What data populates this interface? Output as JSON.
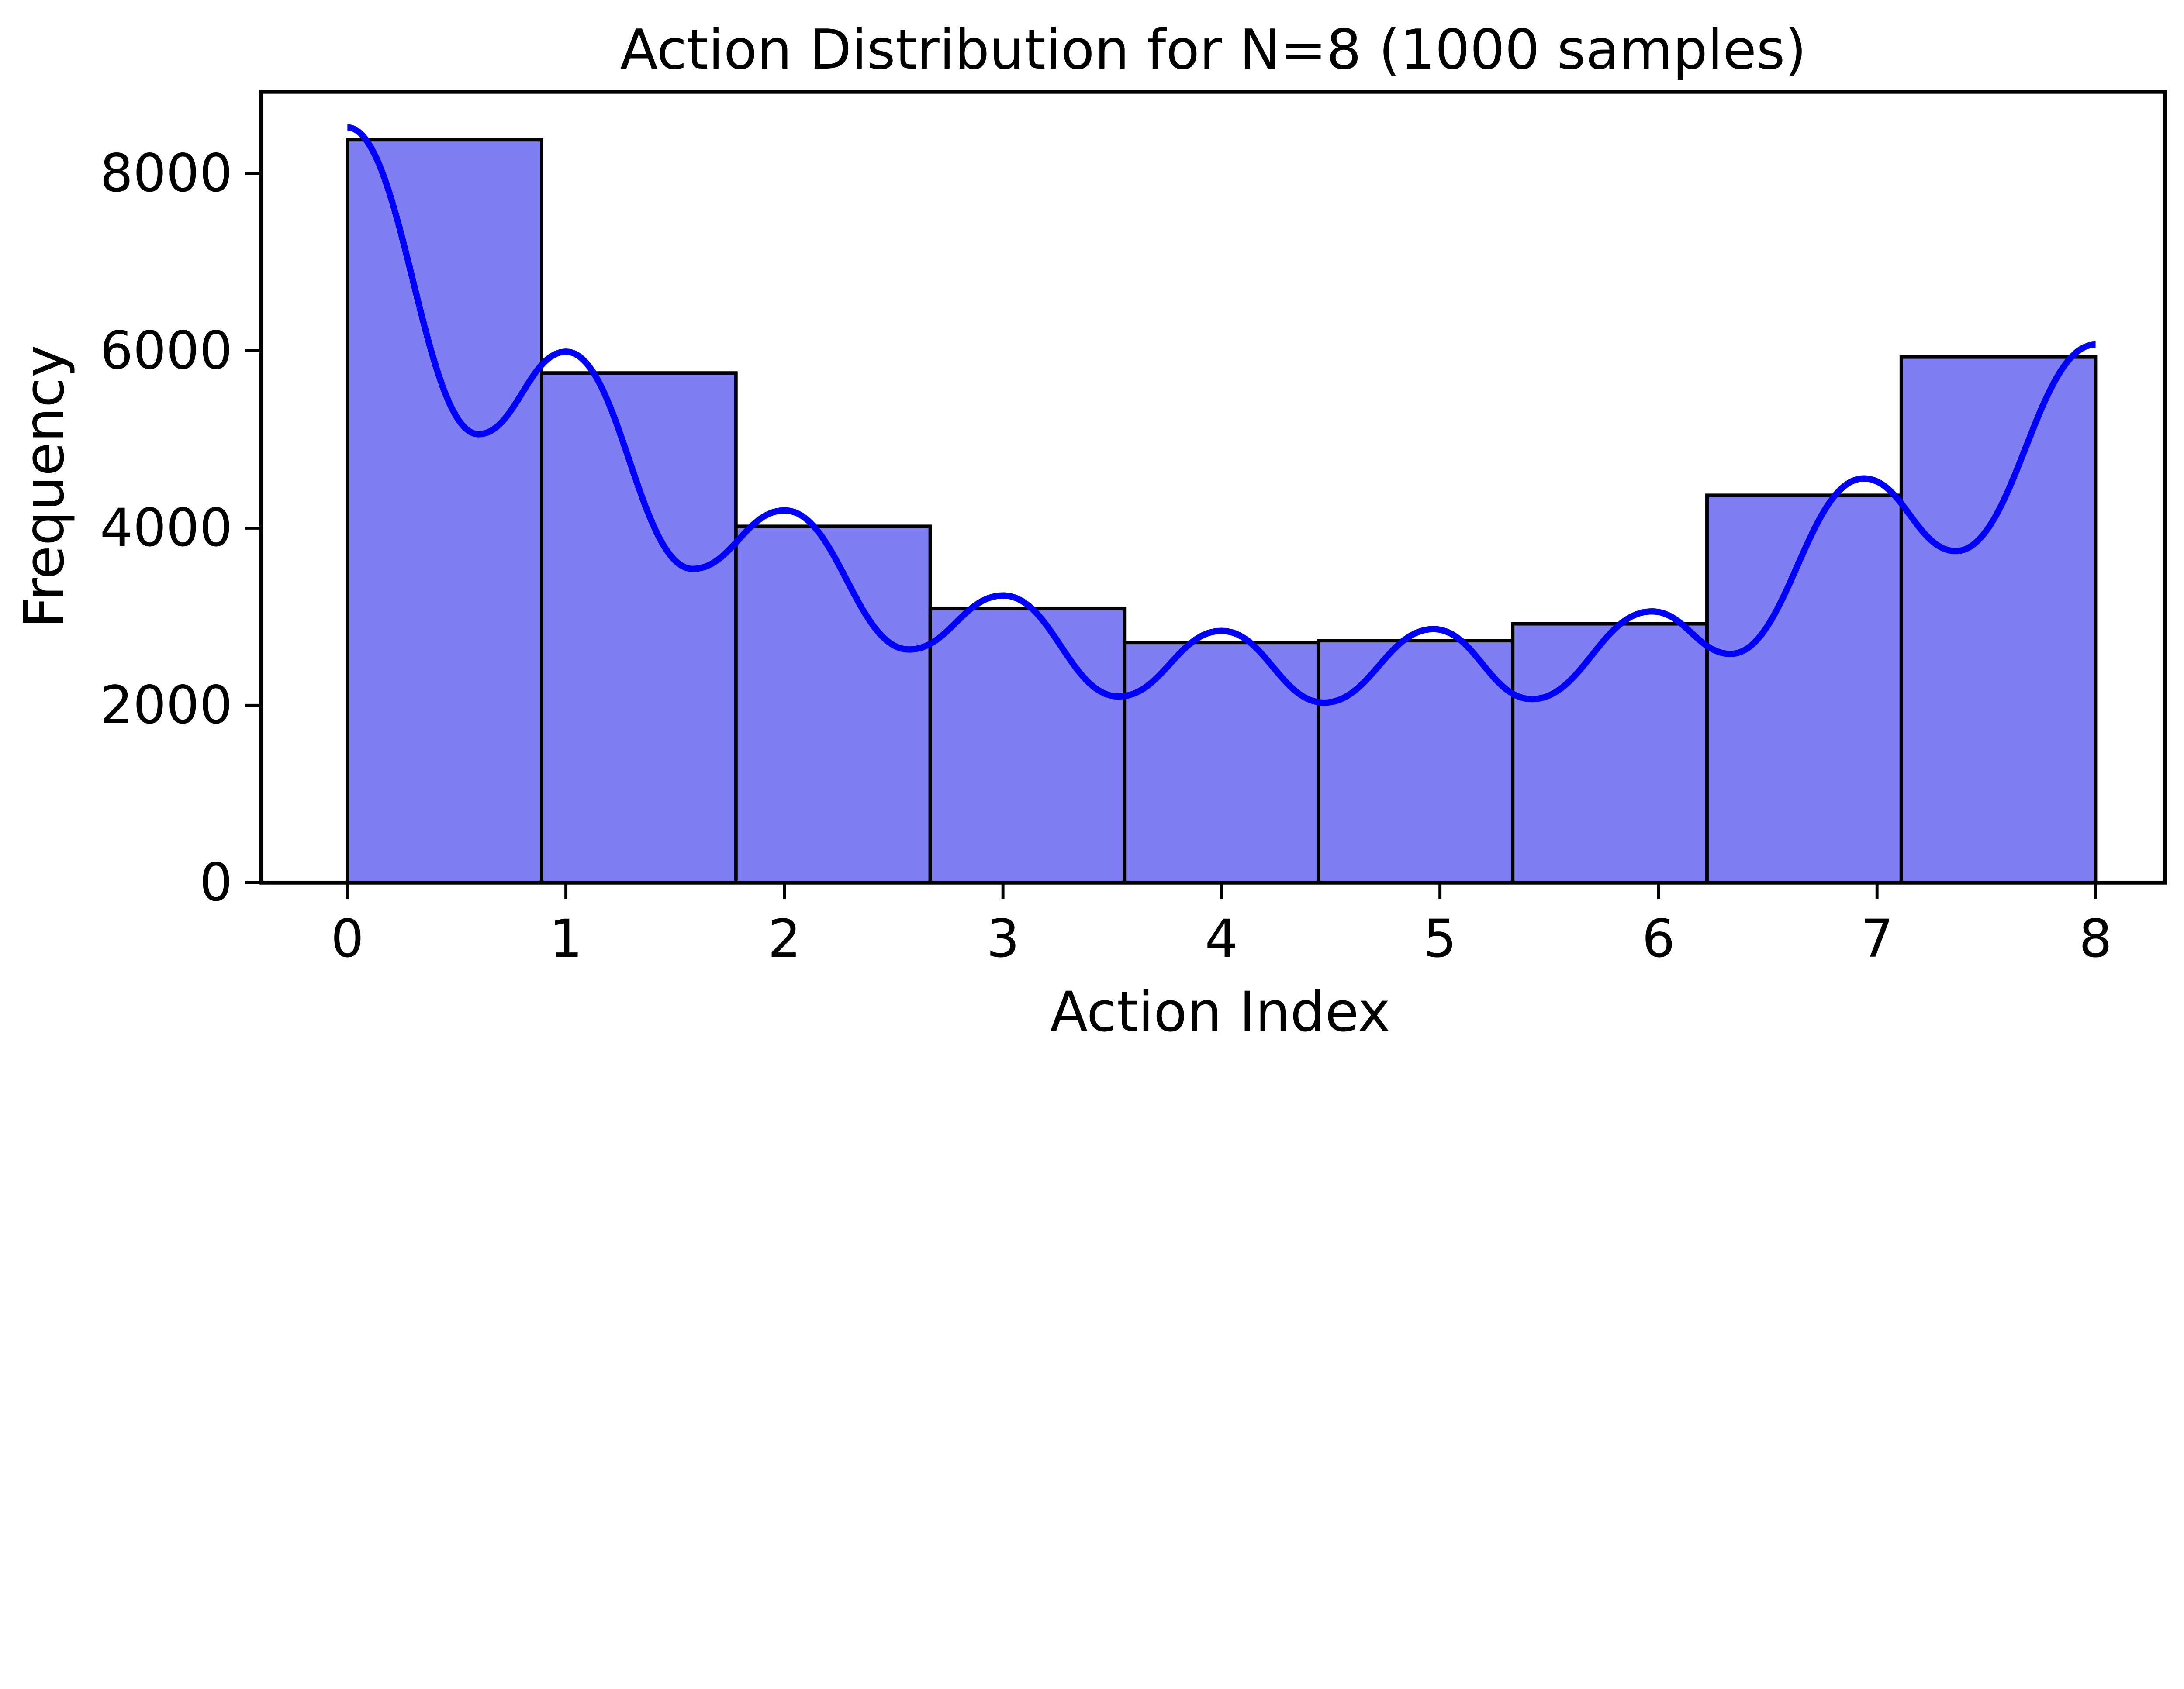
{
  "figure": {
    "background_color": "#ffffff",
    "text_color": "#000000"
  },
  "chart_data": {
    "type": "bar",
    "subtype": "histogram-with-kde",
    "title": "Action Distribution for N=8 (1000 samples)",
    "xlabel": "Action Index",
    "ylabel": "Frequency",
    "xlim": [
      -0.394,
      8.317
    ],
    "ylim": [
      0,
      8922
    ],
    "grid": false,
    "legend": "none",
    "xticks": [
      0,
      1,
      2,
      3,
      4,
      5,
      6,
      7,
      8
    ],
    "yticks": [
      0,
      2000,
      4000,
      6000,
      8000
    ],
    "bin_start": 0,
    "bin_end": 8,
    "bin_count": 9,
    "bin_edges": [
      0,
      0.889,
      1.778,
      2.667,
      3.556,
      4.444,
      5.333,
      6.222,
      7.111,
      8
    ],
    "bar_values": [
      8380,
      5750,
      4020,
      3090,
      2710,
      2730,
      2920,
      4370,
      5930
    ],
    "kde_points": [
      [
        0.0,
        8520
      ],
      [
        0.6,
        5060
      ],
      [
        1.0,
        5990
      ],
      [
        1.58,
        3540
      ],
      [
        2.0,
        4200
      ],
      [
        2.57,
        2630
      ],
      [
        3.0,
        3240
      ],
      [
        3.53,
        2100
      ],
      [
        4.0,
        2840
      ],
      [
        4.47,
        2030
      ],
      [
        4.97,
        2860
      ],
      [
        5.42,
        2070
      ],
      [
        5.97,
        3060
      ],
      [
        6.33,
        2580
      ],
      [
        6.94,
        4560
      ],
      [
        7.36,
        3740
      ],
      [
        8.0,
        6070
      ]
    ],
    "bar_fill_color": "#7f7ff3",
    "bar_edge_color": "#000000",
    "kde_line_color": "#0000ff",
    "spine_color": "#000000"
  }
}
